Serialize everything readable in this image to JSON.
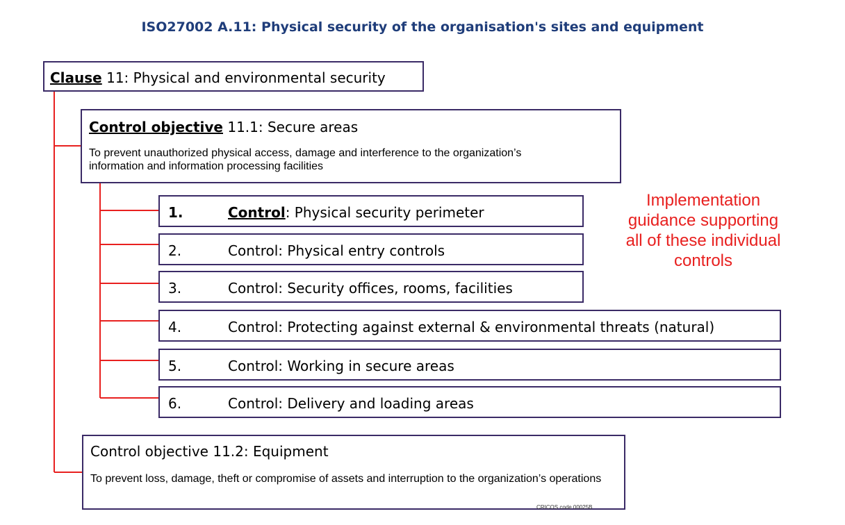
{
  "title": "ISO27002 A.11: Physical security of the organisation's sites and equipment",
  "clause": {
    "keyword": "Clause",
    "text": " 11: Physical and environmental security"
  },
  "objective1": {
    "keyword": "Control objective",
    "text": " 11.1: Secure areas",
    "description": "To prevent unauthorized physical access, damage and interference to the organization’s information and information processing facilities"
  },
  "controls": [
    {
      "num": "1.",
      "keyword": "Control",
      "text": ": Physical security perimeter"
    },
    {
      "num": "2.",
      "text": "Control: Physical entry controls"
    },
    {
      "num": "3.",
      "text": "Control: Security offices, rooms, facilities"
    },
    {
      "num": "4.",
      "text": "Control: Protecting against external & environmental threats (natural)"
    },
    {
      "num": "5.",
      "text": "Control: Working in secure areas"
    },
    {
      "num": "6.",
      "text": "Control: Delivery and loading areas"
    }
  ],
  "objective2": {
    "text": "Control objective 11.2: Equipment",
    "description": "To prevent loss, damage, theft or compromise of assets and interruption to the organization’s operations"
  },
  "guidance": "Implementation guidance supporting all of these individual controls",
  "footer": "CRICOS code 00025B",
  "colors": {
    "title": "#1f3d7a",
    "connector": "#e8201f",
    "guidance": "#e8201f",
    "border": "#3a2a66"
  }
}
